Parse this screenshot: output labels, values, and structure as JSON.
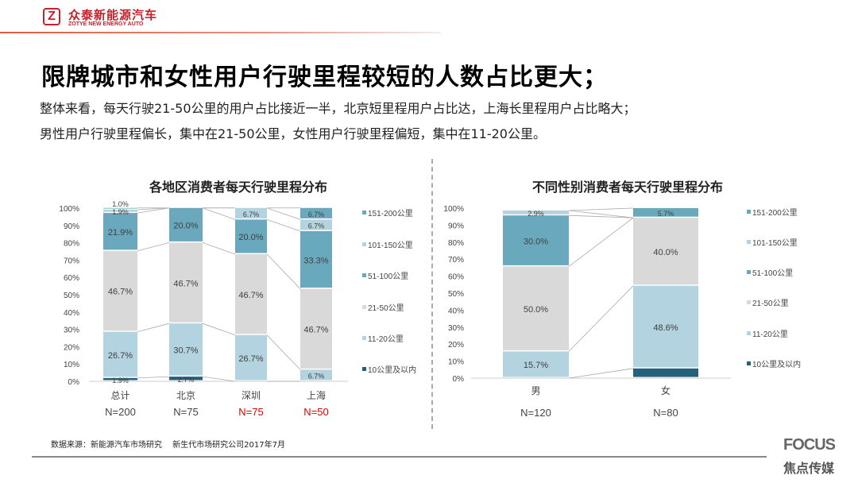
{
  "header": {
    "logo_cn": "众泰新能源汽车",
    "logo_en": "ZOTYE NEW ENERGY AUTO",
    "logo_mark": "Z"
  },
  "title": "限牌城市和女性用户行驶里程较短的人数占比更大；",
  "subtitle_lines": [
    "整体来看，每天行驶21-50公里的用户占比接近一半，北京短里程用户占比达，上海长里程用户占比略大；",
    "男性用户行驶里程偏长，集中在21-50公里，女性用户行驶里程偏短，集中在11-20公里。"
  ],
  "footer": {
    "source": "数据来源：新能源汽车市场研究　 新生代市场研究公司2017年7月",
    "brand": "FOCUS",
    "brand_cn": "焦点传媒"
  },
  "colors": {
    "c10": "#23617d",
    "c11_20": "#b2d3df",
    "c21_50": "#d9d9d9",
    "c51_100": "#6aa8bd",
    "c101_150": "#b2d3df",
    "c151_200": "#6aa8bd",
    "highlight": "#e00000"
  },
  "chart_data": [
    {
      "type": "bar",
      "stacked": true,
      "title": "各地区消费者每天行驶里程分布",
      "categories": [
        "总计",
        "北京",
        "深圳",
        "上海"
      ],
      "sample_sizes": [
        "N=200",
        "N=75",
        "N=75",
        "N=50"
      ],
      "sample_highlight": [
        false,
        false,
        true,
        true
      ],
      "ylim": [
        0,
        100
      ],
      "yticks": [
        "0%",
        "10%",
        "20%",
        "30%",
        "40%",
        "50%",
        "60%",
        "70%",
        "80%",
        "90%",
        "100%"
      ],
      "legend_position": "right",
      "series": [
        {
          "name": "10公里及以内",
          "color_key": "c10",
          "values": [
            1.9,
            2.7,
            0,
            0
          ],
          "labels": [
            "1.9%",
            "2.7%",
            "",
            ""
          ]
        },
        {
          "name": "11-20公里",
          "color_key": "c11_20",
          "values": [
            26.7,
            30.7,
            26.7,
            6.7
          ],
          "labels": [
            "26.7%",
            "30.7%",
            "26.7%",
            "6.7%"
          ]
        },
        {
          "name": "21-50公里",
          "color_key": "c21_50",
          "values": [
            46.7,
            46.7,
            46.7,
            46.7
          ],
          "labels": [
            "46.7%",
            "46.7%",
            "46.7%",
            "46.7%"
          ]
        },
        {
          "name": "51-100公里",
          "color_key": "c51_100",
          "values": [
            21.9,
            20.0,
            20.0,
            33.3
          ],
          "labels": [
            "21.9%",
            "20.0%",
            "20.0%",
            "33.3%"
          ]
        },
        {
          "name": "101-150公里",
          "color_key": "c101_150",
          "values": [
            1.9,
            0,
            6.7,
            6.7
          ],
          "labels": [
            "1.9%",
            "",
            "6.7%",
            "6.7%"
          ]
        },
        {
          "name": "151-200公里",
          "color_key": "c151_200",
          "values": [
            1.0,
            0,
            0,
            6.7
          ],
          "labels": [
            "1.0%",
            "",
            "",
            "6.7%"
          ]
        }
      ]
    },
    {
      "type": "bar",
      "stacked": true,
      "title": "不同性别消费者每天行驶里程分布",
      "categories": [
        "男",
        "女"
      ],
      "sample_sizes": [
        "N=120",
        "N=80"
      ],
      "sample_highlight": [
        false,
        false
      ],
      "ylim": [
        0,
        100
      ],
      "yticks": [
        "0%",
        "10%",
        "20%",
        "30%",
        "40%",
        "50%",
        "60%",
        "70%",
        "80%",
        "90%",
        "100%"
      ],
      "legend_position": "right",
      "series": [
        {
          "name": "10公里及以内",
          "color_key": "c10",
          "values": [
            0,
            5.7
          ],
          "labels": [
            "",
            ""
          ]
        },
        {
          "name": "11-20公里",
          "color_key": "c11_20",
          "values": [
            15.7,
            48.6
          ],
          "labels": [
            "15.7%",
            "48.6%"
          ]
        },
        {
          "name": "21-50公里",
          "color_key": "c21_50",
          "values": [
            50.0,
            40.0
          ],
          "labels": [
            "50.0%",
            "40.0%"
          ]
        },
        {
          "name": "51-100公里",
          "color_key": "c51_100",
          "values": [
            30.0,
            0
          ],
          "labels": [
            "30.0%",
            ""
          ]
        },
        {
          "name": "101-150公里",
          "color_key": "c101_150",
          "values": [
            2.9,
            0
          ],
          "labels": [
            "2.9%",
            ""
          ]
        },
        {
          "name": "151-200公里",
          "color_key": "c151_200",
          "values": [
            0,
            5.7
          ],
          "labels": [
            "",
            "5.7%"
          ]
        }
      ]
    }
  ]
}
